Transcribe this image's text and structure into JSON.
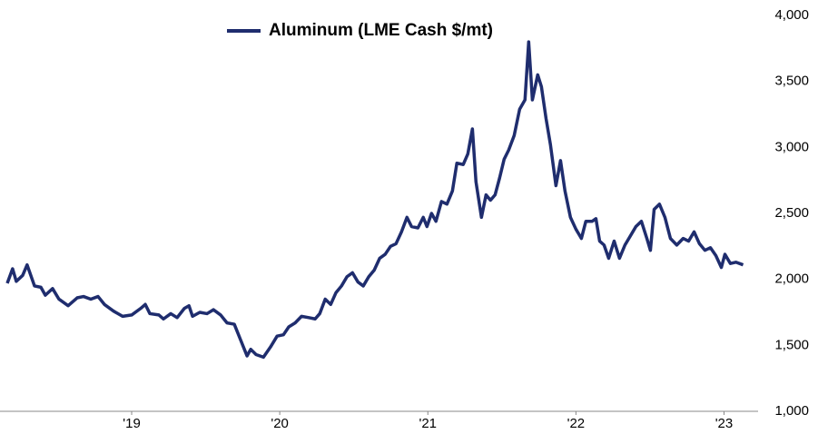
{
  "chart_data": {
    "type": "line",
    "x": [
      2018.16,
      2018.196,
      2018.221,
      2018.264,
      2018.294,
      2018.344,
      2018.387,
      2018.417,
      2018.466,
      2018.509,
      2018.571,
      2018.632,
      2018.675,
      2018.724,
      2018.773,
      2018.816,
      2018.877,
      2018.939,
      2019.0,
      2019.061,
      2019.092,
      2019.123,
      2019.184,
      2019.215,
      2019.264,
      2019.307,
      2019.356,
      2019.387,
      2019.411,
      2019.46,
      2019.509,
      2019.552,
      2019.601,
      2019.644,
      2019.693,
      2019.736,
      2019.779,
      2019.804,
      2019.84,
      2019.89,
      2019.939,
      2019.982,
      2020.025,
      2020.061,
      2020.104,
      2020.147,
      2020.196,
      2020.239,
      2020.27,
      2020.307,
      2020.344,
      2020.38,
      2020.417,
      2020.454,
      2020.491,
      2020.528,
      2020.564,
      2020.601,
      2020.638,
      2020.675,
      2020.712,
      2020.748,
      2020.785,
      2020.822,
      2020.859,
      2020.89,
      2020.933,
      2020.969,
      2020.994,
      2021.025,
      2021.055,
      2021.092,
      2021.129,
      2021.166,
      2021.196,
      2021.239,
      2021.27,
      2021.301,
      2021.325,
      2021.362,
      2021.393,
      2021.423,
      2021.454,
      2021.485,
      2021.515,
      2021.546,
      2021.583,
      2021.62,
      2021.656,
      2021.681,
      2021.706,
      2021.742,
      2021.767,
      2021.798,
      2021.828,
      2021.865,
      2021.896,
      2021.926,
      2021.963,
      2022.0,
      2022.037,
      2022.067,
      2022.11,
      2022.135,
      2022.16,
      2022.19,
      2022.221,
      2022.258,
      2022.294,
      2022.331,
      2022.368,
      2022.405,
      2022.442,
      2022.479,
      2022.503,
      2022.528,
      2022.564,
      2022.601,
      2022.638,
      2022.681,
      2022.724,
      2022.761,
      2022.798,
      2022.834,
      2022.871,
      2022.908,
      2022.945,
      2022.982,
      2023.006,
      2023.043,
      2023.08,
      2023.129
    ],
    "series": [
      {
        "name": "Aluminum (LME Cash $/mt)",
        "color": "#1f2d6e",
        "values": [
          1970,
          2080,
          1985,
          2030,
          2110,
          1950,
          1940,
          1880,
          1930,
          1850,
          1800,
          1860,
          1870,
          1850,
          1870,
          1810,
          1760,
          1720,
          1730,
          1780,
          1810,
          1740,
          1730,
          1700,
          1740,
          1710,
          1780,
          1800,
          1720,
          1750,
          1740,
          1770,
          1730,
          1670,
          1660,
          1540,
          1420,
          1470,
          1430,
          1410,
          1490,
          1570,
          1580,
          1640,
          1670,
          1720,
          1710,
          1700,
          1740,
          1850,
          1810,
          1900,
          1950,
          2020,
          2050,
          1980,
          1950,
          2020,
          2070,
          2160,
          2190,
          2250,
          2270,
          2360,
          2470,
          2400,
          2390,
          2470,
          2400,
          2500,
          2440,
          2590,
          2570,
          2670,
          2880,
          2870,
          2950,
          3140,
          2740,
          2470,
          2640,
          2600,
          2640,
          2770,
          2910,
          2980,
          3090,
          3290,
          3360,
          3800,
          3360,
          3550,
          3460,
          3220,
          3020,
          2710,
          2900,
          2670,
          2470,
          2380,
          2310,
          2440,
          2440,
          2460,
          2290,
          2260,
          2160,
          2290,
          2160,
          2260,
          2330,
          2400,
          2440,
          2310,
          2220,
          2530,
          2570,
          2470,
          2310,
          2260,
          2310,
          2290,
          2360,
          2270,
          2220,
          2240,
          2180,
          2090,
          2190,
          2120,
          2130,
          2110
        ]
      }
    ],
    "xlim": [
      2018.16,
      2023.23
    ],
    "xticks": [
      {
        "value": 2019,
        "label": "'19"
      },
      {
        "value": 2020,
        "label": "'20"
      },
      {
        "value": 2021,
        "label": "'21"
      },
      {
        "value": 2022,
        "label": "'22"
      },
      {
        "value": 2023,
        "label": "'23"
      }
    ],
    "ylim": [
      1000,
      4000
    ],
    "yticks": [
      {
        "value": 1000,
        "label": "1,000"
      },
      {
        "value": 1500,
        "label": "1,500"
      },
      {
        "value": 2000,
        "label": "2,000"
      },
      {
        "value": 2500,
        "label": "2,500"
      },
      {
        "value": 3000,
        "label": "3,000"
      },
      {
        "value": 3500,
        "label": "3,500"
      },
      {
        "value": 4000,
        "label": "4,000"
      }
    ],
    "grid": false,
    "legend": "top"
  }
}
